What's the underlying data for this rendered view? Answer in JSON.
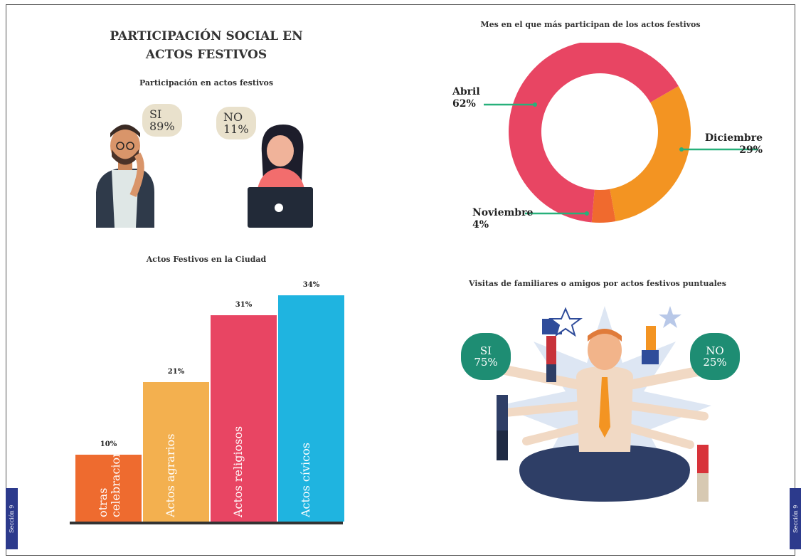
{
  "page": {
    "title": "PARTICIPACIÓN SOCIAL EN ACTOS FESTIVOS",
    "side_tab_left": "Sección 9",
    "side_tab_right": "Sección 9"
  },
  "participation": {
    "subtitle": "Participación en actos festivos",
    "yes_label": "SI",
    "yes_value": "89%",
    "no_label": "NO",
    "no_value": "11%"
  },
  "visits": {
    "subtitle": "Visitas de familiares o amigos por actos festivos puntuales",
    "yes_label": "SI",
    "yes_value": "75%",
    "no_label": "NO",
    "no_value": "25%"
  },
  "chart_data": [
    {
      "type": "bar",
      "title": "Actos Festivos en la Ciudad",
      "categories": [
        "otras celebraciones",
        "Actos agrarios",
        "Actos religiosos",
        "Actos cívicos"
      ],
      "values": [
        10,
        21,
        31,
        34
      ],
      "value_labels": [
        "10%",
        "21%",
        "31%",
        "34%"
      ],
      "colors": [
        "#ee6b2f",
        "#f3b04f",
        "#e84563",
        "#1fb4e0"
      ],
      "ylim": [
        0,
        34
      ]
    },
    {
      "type": "pie",
      "title": "Mes en el que más participan de los actos festivos",
      "categories": [
        "Abril",
        "Diciembre",
        "Noviembre"
      ],
      "values": [
        62,
        29,
        4
      ],
      "value_labels": [
        "62%",
        "29%",
        "4%"
      ],
      "colors": [
        "#e84563",
        "#f39422",
        "#f06a2e"
      ],
      "style": "donut"
    }
  ]
}
